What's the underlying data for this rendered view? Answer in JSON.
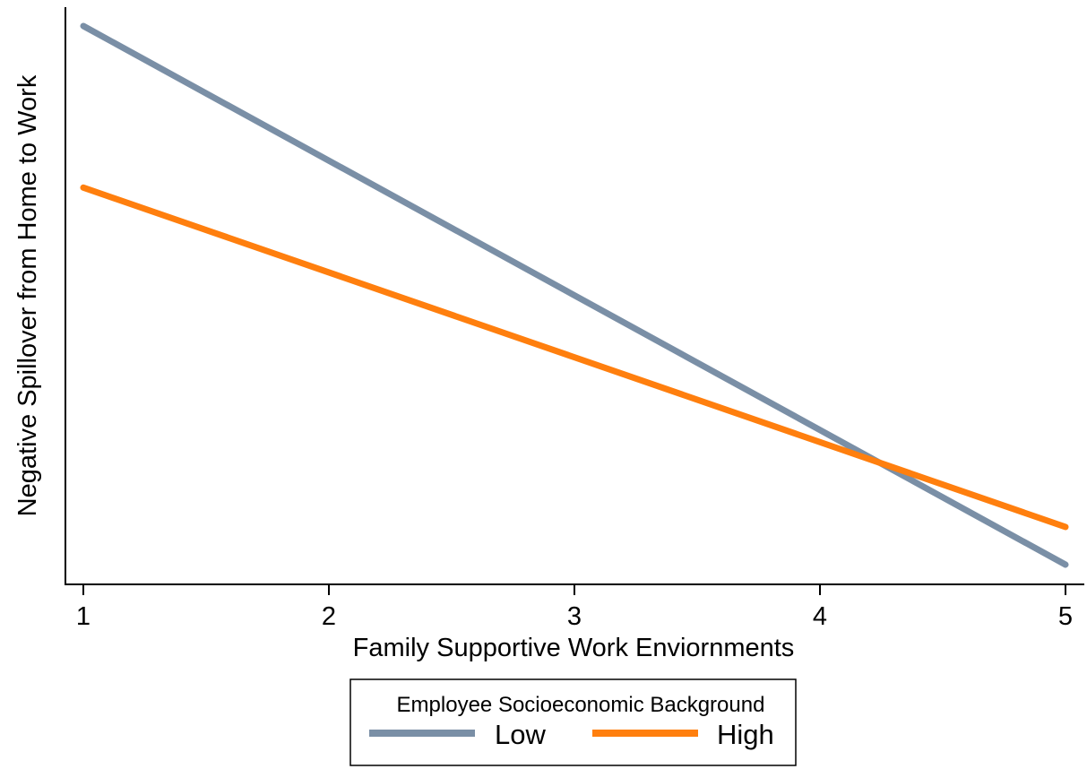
{
  "chart_data": {
    "type": "line",
    "title": "",
    "xlabel": "Family Supportive Work Enviornments",
    "ylabel": "Negative Spillover from Home to Work",
    "x": [
      1,
      5
    ],
    "xticks": [
      "1",
      "2",
      "3",
      "4",
      "5"
    ],
    "xlim": [
      1,
      5
    ],
    "ylim": [
      0,
      1
    ],
    "y_tick_labels_shown": false,
    "grid": false,
    "legend": {
      "title": "Employee Socioeconomic Background",
      "position": "bottom",
      "entries": [
        "Low",
        "High"
      ]
    },
    "series": [
      {
        "name": "Low",
        "color": "#7A8FA6",
        "values": [
          1.0,
          0.0
        ]
      },
      {
        "name": "High",
        "color": "#FF7F0E",
        "values": [
          0.7,
          0.07
        ]
      }
    ]
  }
}
